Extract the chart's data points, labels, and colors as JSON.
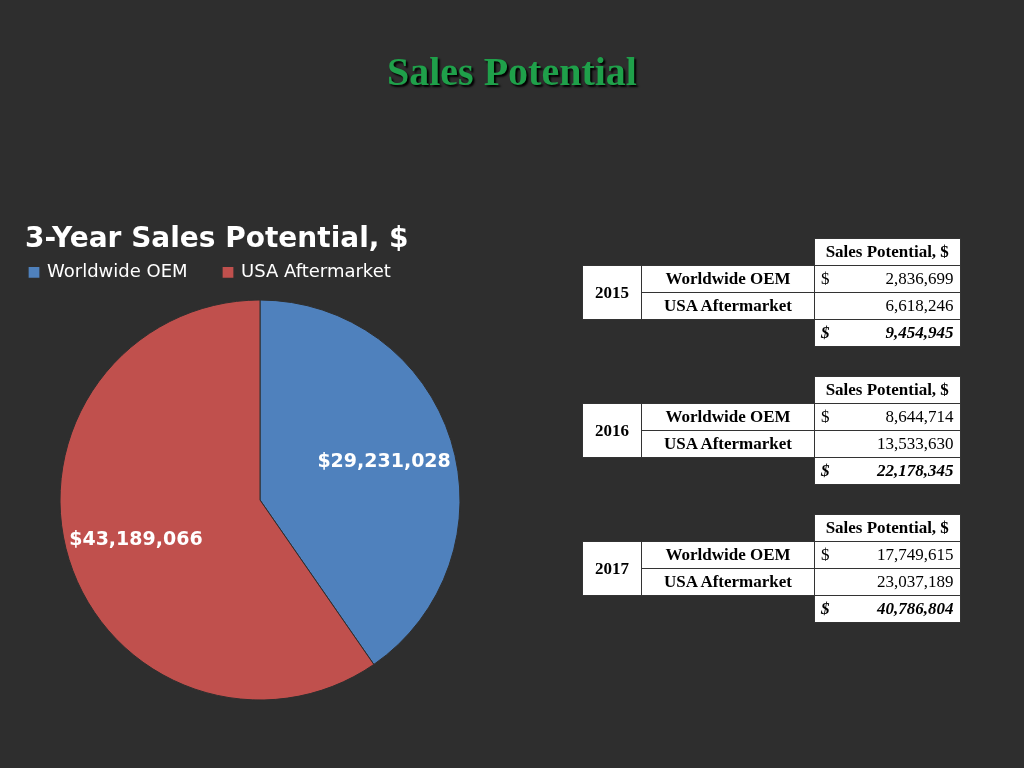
{
  "chart_data": [
    {
      "type": "pie",
      "title": "3-Year Sales Potential, $",
      "categories": [
        "Worldwide OEM",
        "USA Aftermarket"
      ],
      "values": [
        29231028,
        43189066
      ],
      "colors": [
        "#4f81bd",
        "#c0504d"
      ],
      "value_labels": [
        "$29,231,028",
        "$43,189,066"
      ],
      "legend": "top"
    },
    {
      "type": "other",
      "title": "Sales Potential",
      "annotations": [
        "Sales Potential, $",
        "2015",
        "Worldwide OEM",
        "$",
        "2,836,699",
        "USA Aftermarket",
        "6,618,246",
        "$",
        "9,454,945",
        "Sales Potential, $",
        "2016",
        "Worldwide OEM",
        "$",
        "8,644,714",
        "USA Aftermarket",
        "13,533,630",
        "$",
        "22,178,345",
        "Sales Potential, $",
        "2017",
        "Worldwide OEM",
        "$",
        "17,749,615",
        "USA Aftermarket",
        "23,037,189",
        "$",
        "40,786,804"
      ]
    }
  ]
}
